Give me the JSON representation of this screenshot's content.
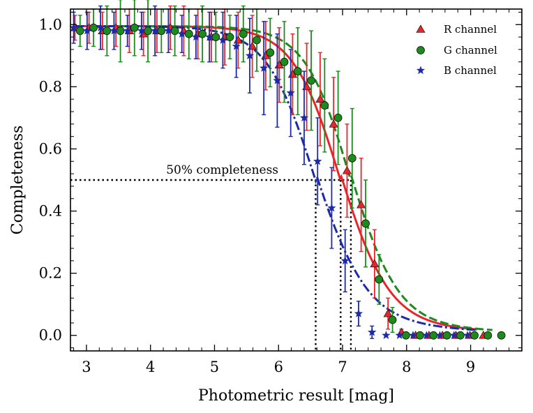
{
  "chart_data": {
    "type": "scatter",
    "xlabel": "Photometric result [mag]",
    "ylabel": "Completeness",
    "xlim": [
      2.75,
      9.8
    ],
    "ylim": [
      -0.05,
      1.05
    ],
    "x_ticks": [
      3,
      4,
      5,
      6,
      7,
      8,
      9
    ],
    "y_ticks": [
      0.0,
      0.2,
      0.4,
      0.6,
      0.8,
      1.0
    ],
    "x_tick_labels": [
      "3",
      "4",
      "5",
      "6",
      "7",
      "8",
      "9"
    ],
    "y_tick_labels": [
      "0.0",
      "0.2",
      "0.4",
      "0.6",
      "0.8",
      "1.0"
    ],
    "minor_ticks": true,
    "grid": false,
    "legend": "top-right",
    "annotation": {
      "text": "50% completeness",
      "x": 4.3,
      "y": 0.5
    },
    "threshold": 0.5,
    "series": [
      {
        "name": "R channel",
        "marker": "triangle",
        "color": "#e8262a",
        "fit_style": "solid",
        "fit_midpoint": 6.97,
        "x": [
          2.82,
          3.04,
          3.25,
          3.46,
          3.67,
          3.89,
          4.1,
          4.31,
          4.52,
          4.74,
          4.95,
          5.16,
          5.37,
          5.59,
          5.8,
          6.01,
          6.22,
          6.44,
          6.65,
          6.86,
          7.07,
          7.29,
          7.5,
          7.71,
          7.92,
          8.14,
          8.35,
          8.56,
          8.77,
          8.99,
          9.2
        ],
        "y": [
          0.99,
          0.99,
          0.98,
          0.99,
          0.98,
          0.97,
          0.98,
          0.99,
          0.98,
          0.97,
          0.96,
          0.96,
          0.95,
          0.93,
          0.9,
          0.87,
          0.84,
          0.8,
          0.76,
          0.68,
          0.53,
          0.42,
          0.23,
          0.07,
          0.01,
          0.0,
          0.0,
          0.0,
          0.0,
          0.0,
          0.0
        ],
        "err": [
          0.04,
          0.05,
          0.06,
          0.06,
          0.07,
          0.07,
          0.07,
          0.07,
          0.08,
          0.08,
          0.08,
          0.09,
          0.09,
          0.1,
          0.11,
          0.12,
          0.13,
          0.14,
          0.15,
          0.15,
          0.15,
          0.15,
          0.11,
          0.05,
          0.01,
          0,
          0,
          0,
          0,
          0,
          0
        ]
      },
      {
        "name": "G channel",
        "marker": "circle",
        "color": "#1e8a1e",
        "fit_style": "dashed",
        "fit_midpoint": 7.13,
        "x": [
          2.9,
          3.11,
          3.32,
          3.53,
          3.75,
          3.96,
          4.17,
          4.38,
          4.6,
          4.81,
          5.02,
          5.24,
          5.45,
          5.66,
          5.87,
          6.09,
          6.3,
          6.51,
          6.72,
          6.93,
          7.15,
          7.36,
          7.57,
          7.78,
          7.99,
          8.21,
          8.42,
          8.63,
          8.84,
          9.06,
          9.27,
          9.48
        ],
        "y": [
          0.98,
          0.99,
          0.98,
          0.98,
          0.99,
          0.98,
          0.98,
          0.98,
          0.97,
          0.97,
          0.96,
          0.96,
          0.97,
          0.95,
          0.91,
          0.88,
          0.85,
          0.82,
          0.74,
          0.7,
          0.57,
          0.36,
          0.18,
          0.05,
          0.0,
          0.0,
          0.0,
          0.0,
          0.0,
          0.0,
          0.0,
          0.0
        ],
        "err": [
          0.05,
          0.06,
          0.08,
          0.1,
          0.09,
          0.1,
          0.07,
          0.08,
          0.08,
          0.09,
          0.08,
          0.07,
          0.09,
          0.1,
          0.11,
          0.13,
          0.14,
          0.16,
          0.15,
          0.15,
          0.16,
          0.14,
          0.08,
          0.04,
          0.01,
          0,
          0,
          0,
          0,
          0,
          0,
          0
        ]
      },
      {
        "name": "B channel",
        "marker": "star",
        "color": "#1c2aa8",
        "fit_style": "dashdot",
        "fit_midpoint": 6.58,
        "x": [
          2.8,
          3.01,
          3.22,
          3.43,
          3.64,
          3.86,
          4.07,
          4.28,
          4.49,
          4.71,
          4.92,
          5.13,
          5.34,
          5.55,
          5.77,
          5.98,
          6.19,
          6.4,
          6.61,
          6.83,
          7.04,
          7.25,
          7.46,
          7.68,
          7.89,
          8.1,
          8.31,
          8.52,
          8.74,
          8.95
        ],
        "y": [
          0.99,
          0.98,
          0.99,
          0.98,
          0.98,
          0.98,
          0.98,
          0.98,
          0.97,
          0.96,
          0.96,
          0.95,
          0.93,
          0.9,
          0.86,
          0.82,
          0.78,
          0.7,
          0.56,
          0.41,
          0.24,
          0.07,
          0.01,
          0.0,
          0.0,
          0.0,
          0.0,
          0.0,
          0.0,
          0.0
        ],
        "err": [
          0.05,
          0.06,
          0.07,
          0.06,
          0.05,
          0.06,
          0.08,
          0.07,
          0.06,
          0.07,
          0.08,
          0.09,
          0.1,
          0.12,
          0.15,
          0.15,
          0.14,
          0.15,
          0.14,
          0.13,
          0.1,
          0.04,
          0.02,
          0,
          0,
          0,
          0,
          0,
          0,
          0
        ]
      }
    ]
  }
}
